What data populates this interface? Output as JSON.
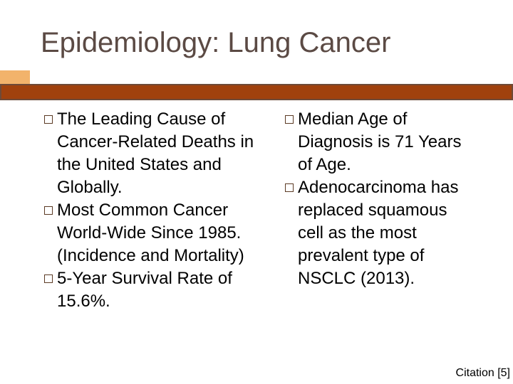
{
  "header": {
    "title": "Epidemiology: Lung Cancer"
  },
  "columns": [
    {
      "bullets": [
        "The Leading Cause of Cancer-Related Deaths in the United States and Globally.",
        "Most Common Cancer World-Wide Since 1985. (Incidence and Mortality)",
        "5-Year Survival Rate of 15.6%."
      ]
    },
    {
      "bullets": [
        "Median Age of Diagnosis is 71 Years of Age.",
        "Adenocarcinoma has replaced squamous cell as the most prevalent type of NSCLC (2013)."
      ]
    }
  ],
  "footer": {
    "citation": "Citation [5]"
  }
}
